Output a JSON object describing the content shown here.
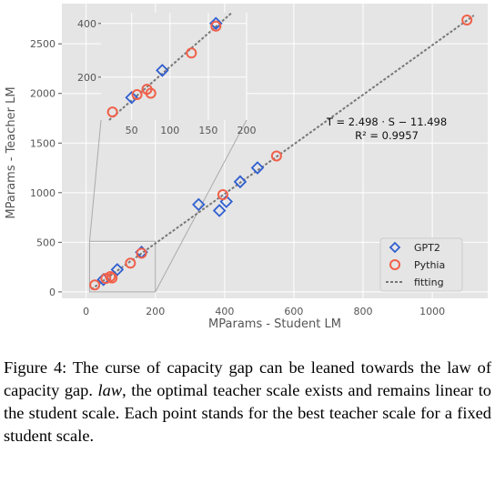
{
  "chart_data": {
    "type": "scatter",
    "xlabel": "MParams - Student LM",
    "ylabel": "MParams - Teacher LM",
    "xlim": [
      -70,
      1160
    ],
    "ylim": [
      -65,
      2905
    ],
    "xticks": [
      0,
      200,
      400,
      600,
      800,
      1000
    ],
    "yticks": [
      0,
      500,
      1000,
      1500,
      2000,
      2500
    ],
    "grid": true,
    "legend_position": "lower-right",
    "series": [
      {
        "name": "GPT2",
        "marker": "diamond",
        "color": "#2f5fd0",
        "points": [
          {
            "x": 50,
            "y": 124
          },
          {
            "x": 90,
            "y": 225
          },
          {
            "x": 160,
            "y": 400
          },
          {
            "x": 325,
            "y": 880
          },
          {
            "x": 385,
            "y": 820
          },
          {
            "x": 405,
            "y": 910
          },
          {
            "x": 445,
            "y": 1110
          },
          {
            "x": 495,
            "y": 1250
          }
        ]
      },
      {
        "name": "Pythia",
        "marker": "circle",
        "color": "#f0604a",
        "points": [
          {
            "x": 25,
            "y": 70
          },
          {
            "x": 57,
            "y": 135
          },
          {
            "x": 70,
            "y": 155
          },
          {
            "x": 75,
            "y": 140
          },
          {
            "x": 128,
            "y": 290
          },
          {
            "x": 160,
            "y": 390
          },
          {
            "x": 395,
            "y": 980
          },
          {
            "x": 550,
            "y": 1370
          },
          {
            "x": 1100,
            "y": 2740
          }
        ]
      },
      {
        "name": "fitting",
        "style": "dashed",
        "color": "#777777",
        "slope": 2.498,
        "intercept": -11.498,
        "x_range": [
          15,
          1120
        ]
      }
    ],
    "annotations": {
      "equation": "T = 2.498 · S − 11.498",
      "r2": "R² = 0.9957"
    },
    "inset": {
      "xlim": [
        10,
        200
      ],
      "ylim": [
        40,
        440
      ],
      "xticks": [
        50,
        100,
        150,
        200
      ],
      "yticks": [
        200,
        400
      ],
      "zoom_region": {
        "x": [
          10,
          200
        ],
        "y": [
          0,
          510
        ]
      }
    }
  },
  "caption": {
    "before": "Figure 4: The curse of capacity gap can be leaned towards the law of capacity gap. ",
    "emph": "law",
    "after": ", the optimal teacher scale exists and remains linear to the student scale. Each point stands for the best teacher scale for a fixed student scale."
  }
}
